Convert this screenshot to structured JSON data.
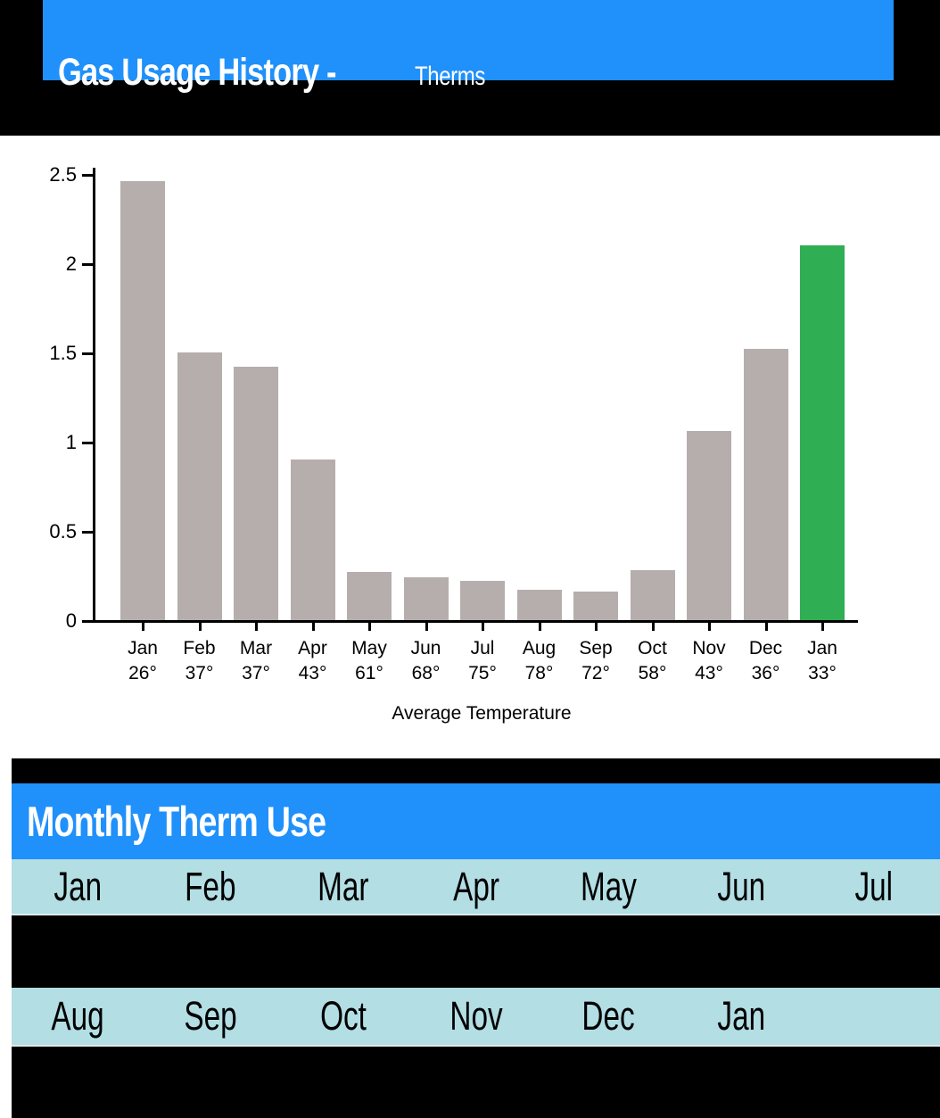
{
  "header": {
    "title": "Gas Usage History -",
    "subtitle": "Therms"
  },
  "chart_data": {
    "type": "bar",
    "title": "Gas Usage History - Therms",
    "categories": [
      "Jan",
      "Feb",
      "Mar",
      "Apr",
      "May",
      "Jun",
      "Jul",
      "Aug",
      "Sep",
      "Oct",
      "Nov",
      "Dec",
      "Jan"
    ],
    "temperatures": [
      "26°",
      "37°",
      "37°",
      "43°",
      "61°",
      "68°",
      "75°",
      "78°",
      "72°",
      "58°",
      "43°",
      "36°",
      "33°"
    ],
    "values": [
      2.46,
      1.5,
      1.42,
      0.9,
      0.27,
      0.24,
      0.22,
      0.17,
      0.16,
      0.28,
      1.06,
      1.52,
      2.1
    ],
    "xlabel": "Average Temperature",
    "ylabel": "",
    "ylim": [
      0,
      2.5
    ],
    "yticks": [
      0,
      0.5,
      1,
      1.5,
      2,
      2.5
    ],
    "grid": false,
    "legend": "none",
    "bar_color": "#B6AEAC",
    "highlight_index": 12,
    "highlight_color": "#2FAE53"
  },
  "table": {
    "title": "Monthly Therm Use",
    "row1": [
      "Jan",
      "Feb",
      "Mar",
      "Apr",
      "May",
      "Jun",
      "Jul"
    ],
    "row2": [
      "Aug",
      "Sep",
      "Oct",
      "Nov",
      "Dec",
      "Jan"
    ]
  },
  "colors": {
    "accent_blue": "#2090FA",
    "table_row_bg": "#B2DEE4",
    "bar_gray": "#B6AEAC",
    "bar_green": "#2FAE53",
    "section_bg": "#000000"
  }
}
